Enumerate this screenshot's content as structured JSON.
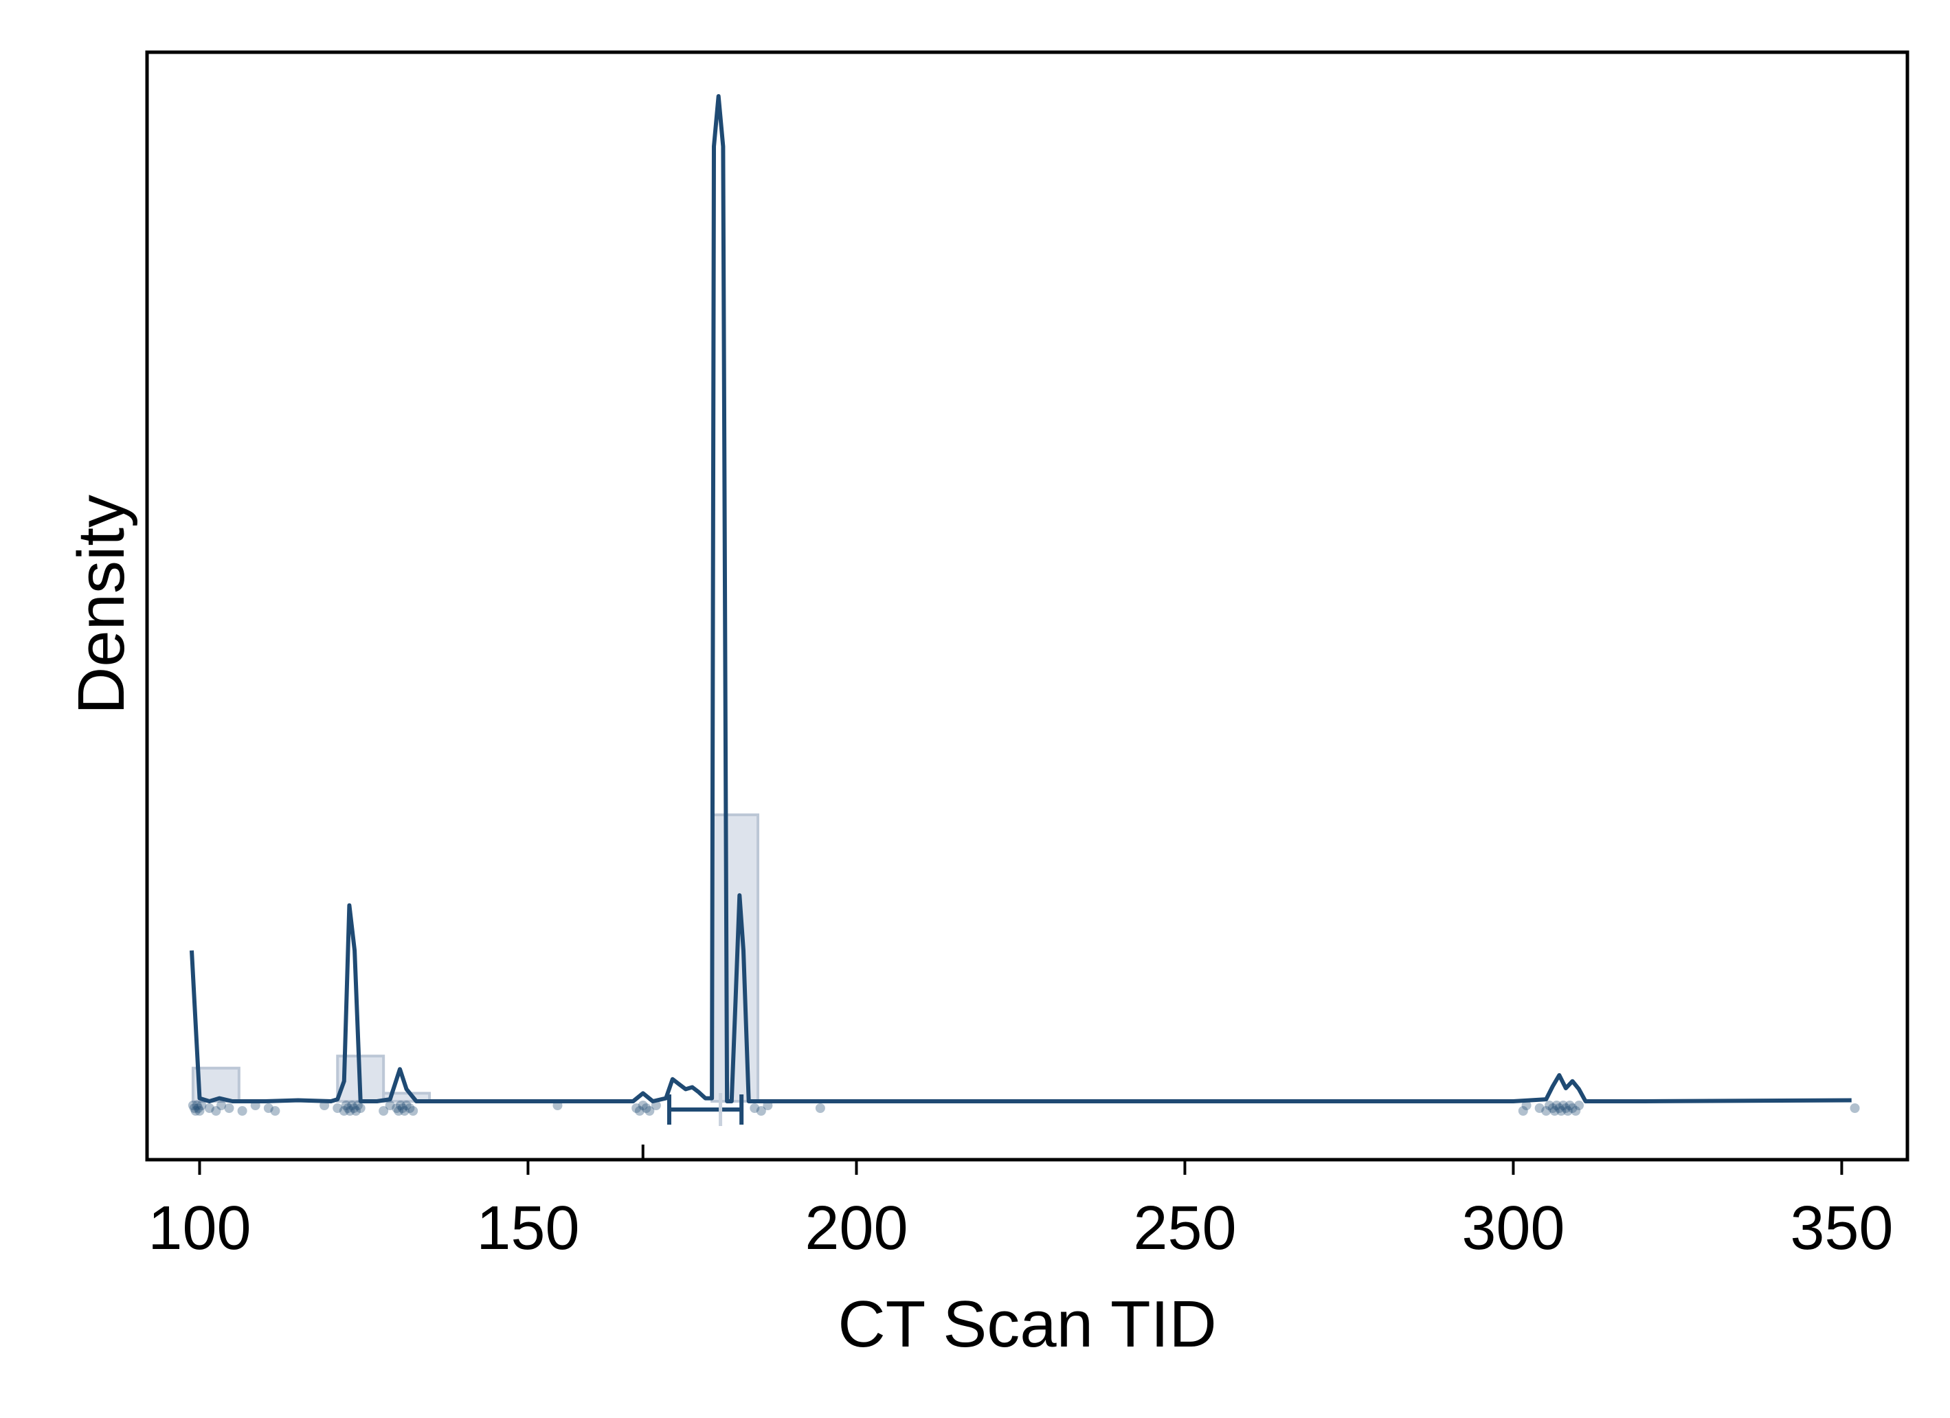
{
  "chart_data": {
    "type": "histogram-density",
    "xlabel": "CT Scan TID",
    "ylabel": "Density",
    "xlim": [
      92,
      360
    ],
    "ylim": [
      0,
      1
    ],
    "y_ticks_shown": false,
    "grid": false,
    "x_ticks": [
      100,
      150,
      200,
      250,
      300,
      350
    ],
    "histogram": {
      "bins": [
        {
          "x0": 99,
          "x1": 106,
          "y": 0.033
        },
        {
          "x0": 121,
          "x1": 128,
          "y": 0.045
        },
        {
          "x0": 128,
          "x1": 135,
          "y": 0.008
        },
        {
          "x0": 178,
          "x1": 185,
          "y": 0.285
        }
      ]
    },
    "density_curve": [
      [
        98.8,
        0.15
      ],
      [
        100.0,
        0.003
      ],
      [
        101.5,
        0.0
      ],
      [
        103.0,
        0.003
      ],
      [
        105.0,
        0.0
      ],
      [
        110.0,
        0.0
      ],
      [
        115.0,
        0.001
      ],
      [
        120.0,
        0.0
      ],
      [
        121.0,
        0.002
      ],
      [
        122.0,
        0.02
      ],
      [
        122.8,
        0.195
      ],
      [
        123.6,
        0.15
      ],
      [
        124.5,
        0.0
      ],
      [
        127.0,
        0.0
      ],
      [
        129.0,
        0.002
      ],
      [
        130.5,
        0.032
      ],
      [
        131.5,
        0.012
      ],
      [
        133.0,
        0.0
      ],
      [
        140.0,
        0.0
      ],
      [
        150.0,
        0.0
      ],
      [
        160.0,
        0.0
      ],
      [
        166.0,
        0.0
      ],
      [
        167.5,
        0.008
      ],
      [
        169.0,
        0.0
      ],
      [
        171.0,
        0.003
      ],
      [
        172.0,
        0.022
      ],
      [
        173.0,
        0.017
      ],
      [
        174.0,
        0.012
      ],
      [
        175.0,
        0.014
      ],
      [
        176.0,
        0.009
      ],
      [
        177.0,
        0.003
      ],
      [
        178.0,
        0.003
      ],
      [
        178.3,
        0.95
      ],
      [
        179.0,
        1.0
      ],
      [
        179.7,
        0.95
      ],
      [
        180.3,
        0.0
      ],
      [
        181.0,
        0.0
      ],
      [
        181.6,
        0.1
      ],
      [
        182.2,
        0.205
      ],
      [
        182.8,
        0.15
      ],
      [
        183.6,
        0.0
      ],
      [
        186.0,
        0.0
      ],
      [
        190.0,
        0.0
      ],
      [
        200.0,
        0.0
      ],
      [
        250.0,
        0.0
      ],
      [
        300.0,
        0.0
      ],
      [
        305.0,
        0.002
      ],
      [
        306.0,
        0.015
      ],
      [
        307.0,
        0.026
      ],
      [
        308.0,
        0.013
      ],
      [
        309.0,
        0.02
      ],
      [
        310.0,
        0.012
      ],
      [
        311.0,
        0.0
      ],
      [
        320.0,
        0.0
      ],
      [
        351.5,
        0.001
      ]
    ],
    "rug_points": [
      99,
      99.2,
      99.4,
      99.6,
      99.8,
      100,
      100.3,
      101.5,
      102.5,
      103.3,
      104.5,
      106.5,
      108.5,
      110.5,
      111.5,
      119,
      121,
      122,
      122.3,
      122.6,
      122.9,
      123.2,
      123.5,
      123.8,
      124.1,
      124.5,
      128,
      129,
      130,
      130.3,
      130.6,
      130.9,
      131.2,
      131.5,
      132,
      132.5,
      154.5,
      166.5,
      167,
      167.5,
      168,
      168.5,
      169.5,
      184.5,
      185.5,
      186.5,
      194.5,
      301.5,
      302,
      304,
      305,
      305.5,
      306,
      306.3,
      306.6,
      307,
      307.3,
      307.6,
      308,
      308.3,
      308.6,
      309,
      309.5,
      310,
      352
    ],
    "box_summary": {
      "mean_tick": 167.5,
      "ci_low": 171.5,
      "ci_high": 182.5,
      "median": 179.3
    },
    "colors": {
      "line": "#1f4a73",
      "bar_fill": "#dde3ec",
      "bar_edge": "#bcc7d6",
      "rug": "#1f4a73"
    }
  }
}
